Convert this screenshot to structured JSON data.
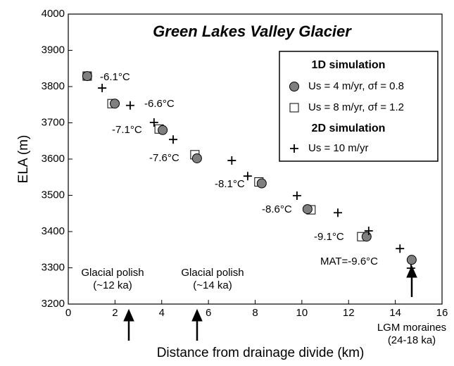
{
  "chart_data": {
    "type": "scatter",
    "title": "Green Lakes Valley Glacier",
    "x_label": "Distance from drainage divide (km)",
    "y_label": "ELA (m)",
    "xlim": [
      0,
      16
    ],
    "xticks": [
      0,
      2,
      4,
      6,
      8,
      10,
      12,
      14,
      16
    ],
    "ylim": [
      3200,
      4000
    ],
    "yticks": [
      3200,
      3300,
      3400,
      3500,
      3600,
      3700,
      3800,
      3900,
      4000
    ],
    "grid": false,
    "legend_titles": [
      "1D simulation",
      "2D simulation"
    ],
    "series": [
      {
        "name": "Us = 4 m/yr, σf = 0.8",
        "marker": "circle",
        "color": "#7f7f7f",
        "x": [
          0.81,
          1.99,
          4.04,
          5.51,
          8.28,
          10.24,
          12.77,
          14.7
        ],
        "values": [
          3829,
          3753,
          3680,
          3602,
          3533,
          3462,
          3386,
          3322
        ]
      },
      {
        "name": "Us = 8 m/yr, σf = 1.2",
        "marker": "square",
        "color": "#ffffff",
        "x": [
          0.81,
          1.87,
          3.89,
          5.42,
          8.16,
          10.39,
          12.56
        ],
        "values": [
          3829,
          3753,
          3683,
          3612,
          3537,
          3460,
          3386
        ]
      },
      {
        "name": "Us = 10 m/yr",
        "marker": "plus",
        "color": "#000000",
        "x": [
          1.45,
          2.65,
          3.67,
          4.49,
          7.0,
          7.68,
          9.79,
          11.54,
          12.86,
          14.2,
          14.67
        ],
        "values": [
          3796,
          3748,
          3701,
          3654,
          3596,
          3553,
          3499,
          3452,
          3402,
          3353,
          3299
        ]
      }
    ],
    "annotations": [
      "-6.1°C",
      "-6.6°C",
      "-7.1°C",
      "-7.6°C",
      "-8.1°C",
      "-8.6°C",
      "-9.1°C",
      "MAT=-9.6°C"
    ],
    "arrow_labels": [
      [
        "Glacial polish",
        "(~12 ka)"
      ],
      [
        "Glacial polish",
        "(~14 ka)"
      ],
      [
        "LGM moraines",
        "(24-18 ka)"
      ]
    ]
  }
}
